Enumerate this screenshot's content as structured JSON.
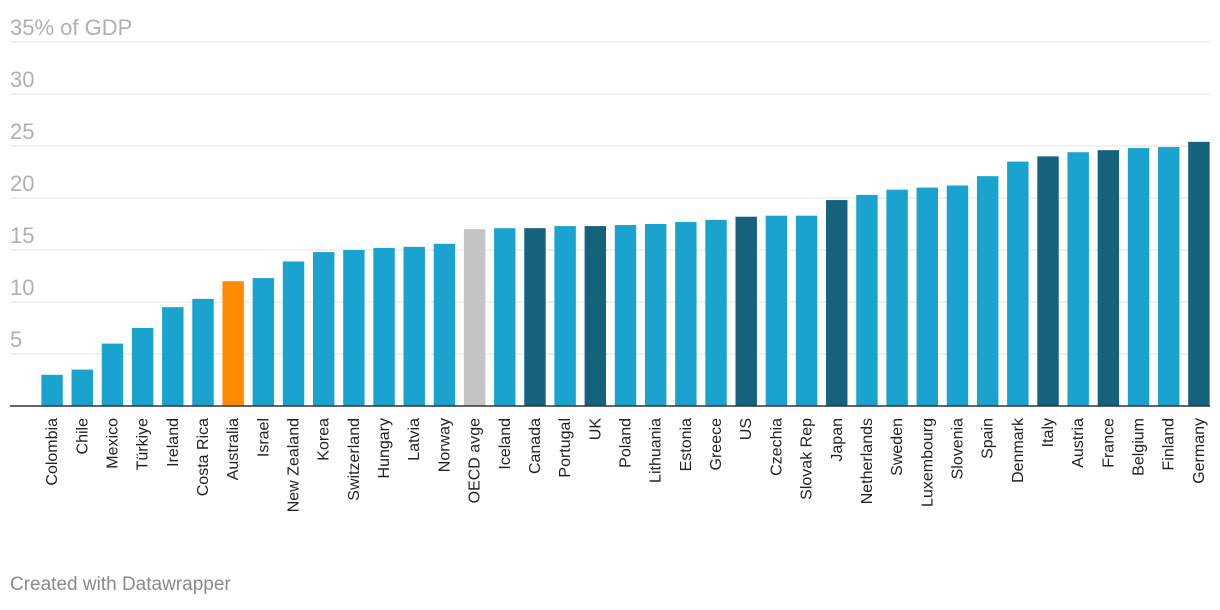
{
  "chart_data": {
    "type": "bar",
    "categories": [
      "Colombia",
      "Chile",
      "Mexico",
      "Türkiye",
      "Ireland",
      "Costa Rica",
      "Australia",
      "Israel",
      "New Zealand",
      "Korea",
      "Switzerland",
      "Hungary",
      "Latvia",
      "Norway",
      "OECD avge",
      "Iceland",
      "Canada",
      "Portugal",
      "UK",
      "Poland",
      "Lithuania",
      "Estonia",
      "Greece",
      "US",
      "Czechia",
      "Slovak Rep",
      "Japan",
      "Netherlands",
      "Sweden",
      "Luxembourg",
      "Slovenia",
      "Spain",
      "Denmark",
      "Italy",
      "Austria",
      "France",
      "Belgium",
      "Finland",
      "Germany"
    ],
    "values": [
      3.0,
      3.5,
      6.0,
      7.5,
      9.5,
      10.3,
      12.0,
      12.3,
      13.9,
      14.8,
      15.0,
      15.2,
      15.3,
      15.6,
      17.0,
      17.1,
      17.1,
      17.3,
      17.3,
      17.4,
      17.5,
      17.7,
      17.9,
      18.2,
      18.3,
      18.3,
      19.8,
      20.3,
      20.8,
      21.0,
      21.2,
      22.1,
      23.5,
      24.0,
      24.4,
      24.6,
      24.8,
      24.9,
      25.4
    ],
    "bar_colors": [
      "#1ba3cf",
      "#1ba3cf",
      "#1ba3cf",
      "#1ba3cf",
      "#1ba3cf",
      "#1ba3cf",
      "#ff8c00",
      "#1ba3cf",
      "#1ba3cf",
      "#1ba3cf",
      "#1ba3cf",
      "#1ba3cf",
      "#1ba3cf",
      "#1ba3cf",
      "#c4c4c4",
      "#1ba3cf",
      "#15627d",
      "#1ba3cf",
      "#15627d",
      "#1ba3cf",
      "#1ba3cf",
      "#1ba3cf",
      "#1ba3cf",
      "#15627d",
      "#1ba3cf",
      "#1ba3cf",
      "#15627d",
      "#1ba3cf",
      "#1ba3cf",
      "#1ba3cf",
      "#1ba3cf",
      "#1ba3cf",
      "#1ba3cf",
      "#15627d",
      "#1ba3cf",
      "#15627d",
      "#1ba3cf",
      "#1ba3cf",
      "#15627d"
    ],
    "yticks": [
      5,
      10,
      15,
      20,
      25,
      30,
      35
    ],
    "ytick_labels": [
      "5",
      "10",
      "15",
      "20",
      "25",
      "30",
      "35% of GDP"
    ],
    "ylim": [
      0,
      35
    ],
    "grid": true,
    "title": "",
    "xlabel": "",
    "ylabel": ""
  },
  "footer": {
    "credit": "Created with Datawrapper"
  }
}
